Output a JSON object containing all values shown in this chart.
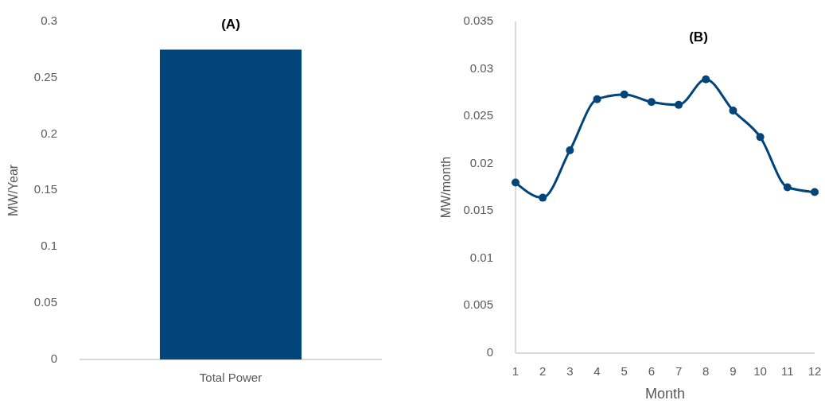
{
  "chart_data": [
    {
      "type": "bar",
      "title": "(A)",
      "ylabel": "MW/Year",
      "categories": [
        "Total Power"
      ],
      "values": [
        0.275
      ],
      "color": "#01457a",
      "ylim": [
        0,
        0.3
      ],
      "yticks": [
        0,
        0.05,
        0.1,
        0.15,
        0.2,
        0.25,
        0.3
      ],
      "grid": false
    },
    {
      "type": "line",
      "title": "(B)",
      "xlabel": "Month",
      "ylabel": "MW/month",
      "x": [
        1,
        2,
        3,
        4,
        5,
        6,
        7,
        8,
        9,
        10,
        11,
        12
      ],
      "series": [
        {
          "color": "#01457a",
          "values": [
            0.018,
            0.0164,
            0.0214,
            0.0268,
            0.0273,
            0.0265,
            0.0262,
            0.0289,
            0.0256,
            0.0228,
            0.0175,
            0.017
          ]
        }
      ],
      "xlim": [
        1,
        12
      ],
      "xticks": [
        1,
        2,
        3,
        4,
        5,
        6,
        7,
        8,
        9,
        10,
        11,
        12
      ],
      "ylim": [
        0,
        0.035
      ],
      "yticks": [
        0,
        0.005,
        0.01,
        0.015,
        0.02,
        0.025,
        0.03,
        0.035
      ],
      "grid": false,
      "marker": "circle",
      "line_style": "solid"
    }
  ]
}
